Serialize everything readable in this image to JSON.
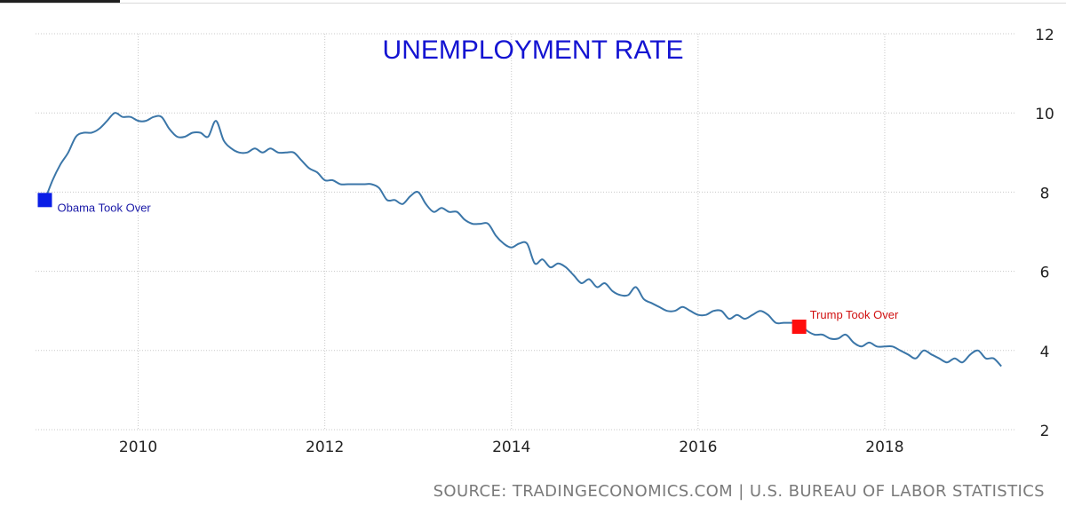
{
  "chart_data": {
    "type": "line",
    "title": "UNEMPLOYMENT RATE",
    "xlabel": "",
    "ylabel": "",
    "xlim": [
      2008.9,
      2019.4
    ],
    "ylim": [
      2,
      12
    ],
    "x_ticks": [
      "2010",
      "2012",
      "2014",
      "2016",
      "2018"
    ],
    "y_ticks": [
      "2",
      "4",
      "6",
      "8",
      "10",
      "12"
    ],
    "y_axis_position": "right",
    "grid": true,
    "series": [
      {
        "color": "#3b76a8",
        "x": [
          2009.0,
          2009.083,
          2009.167,
          2009.25,
          2009.333,
          2009.417,
          2009.5,
          2009.583,
          2009.667,
          2009.75,
          2009.833,
          2009.917,
          2010.0,
          2010.083,
          2010.167,
          2010.25,
          2010.333,
          2010.417,
          2010.5,
          2010.583,
          2010.667,
          2010.75,
          2010.833,
          2010.917,
          2011.0,
          2011.083,
          2011.167,
          2011.25,
          2011.333,
          2011.417,
          2011.5,
          2011.583,
          2011.667,
          2011.75,
          2011.833,
          2011.917,
          2012.0,
          2012.083,
          2012.167,
          2012.25,
          2012.333,
          2012.417,
          2012.5,
          2012.583,
          2012.667,
          2012.75,
          2012.833,
          2012.917,
          2013.0,
          2013.083,
          2013.167,
          2013.25,
          2013.333,
          2013.417,
          2013.5,
          2013.583,
          2013.667,
          2013.75,
          2013.833,
          2013.917,
          2014.0,
          2014.083,
          2014.167,
          2014.25,
          2014.333,
          2014.417,
          2014.5,
          2014.583,
          2014.667,
          2014.75,
          2014.833,
          2014.917,
          2015.0,
          2015.083,
          2015.167,
          2015.25,
          2015.333,
          2015.417,
          2015.5,
          2015.583,
          2015.667,
          2015.75,
          2015.833,
          2015.917,
          2016.0,
          2016.083,
          2016.167,
          2016.25,
          2016.333,
          2016.417,
          2016.5,
          2016.583,
          2016.667,
          2016.75,
          2016.833,
          2016.917,
          2017.0,
          2017.083,
          2017.167,
          2017.25,
          2017.333,
          2017.417,
          2017.5,
          2017.583,
          2017.667,
          2017.75,
          2017.833,
          2017.917,
          2018.0,
          2018.083,
          2018.167,
          2018.25,
          2018.333,
          2018.417,
          2018.5,
          2018.583,
          2018.667,
          2018.75,
          2018.833,
          2018.917,
          2019.0,
          2019.083,
          2019.167,
          2019.25
        ],
        "values": [
          7.8,
          8.3,
          8.7,
          9.0,
          9.4,
          9.5,
          9.5,
          9.6,
          9.8,
          10.0,
          9.9,
          9.9,
          9.8,
          9.8,
          9.9,
          9.9,
          9.6,
          9.4,
          9.4,
          9.5,
          9.5,
          9.4,
          9.8,
          9.3,
          9.1,
          9.0,
          9.0,
          9.1,
          9.0,
          9.1,
          9.0,
          9.0,
          9.0,
          8.8,
          8.6,
          8.5,
          8.3,
          8.3,
          8.2,
          8.2,
          8.2,
          8.2,
          8.2,
          8.1,
          7.8,
          7.8,
          7.7,
          7.9,
          8.0,
          7.7,
          7.5,
          7.6,
          7.5,
          7.5,
          7.3,
          7.2,
          7.2,
          7.2,
          6.9,
          6.7,
          6.6,
          6.7,
          6.7,
          6.2,
          6.3,
          6.1,
          6.2,
          6.1,
          5.9,
          5.7,
          5.8,
          5.6,
          5.7,
          5.5,
          5.4,
          5.4,
          5.6,
          5.3,
          5.2,
          5.1,
          5.0,
          5.0,
          5.1,
          5.0,
          4.9,
          4.9,
          5.0,
          5.0,
          4.8,
          4.9,
          4.8,
          4.9,
          5.0,
          4.9,
          4.7,
          4.7,
          4.7,
          4.7,
          4.5,
          4.4,
          4.4,
          4.3,
          4.3,
          4.4,
          4.2,
          4.1,
          4.2,
          4.1,
          4.1,
          4.1,
          4.0,
          3.9,
          3.8,
          4.0,
          3.9,
          3.8,
          3.7,
          3.8,
          3.7,
          3.9,
          4.0,
          3.8,
          3.8,
          3.6
        ]
      }
    ],
    "annotations": [
      {
        "label": "Obama Took Over",
        "x": 2009.0,
        "y": 7.8,
        "color": "#0a1ee6",
        "text_color": "#1a1aa8"
      },
      {
        "label": "Trump Took Over",
        "x": 2017.083,
        "y": 4.6,
        "color": "#ff0d0d",
        "text_color": "#d01010"
      }
    ]
  },
  "source_text": "SOURCE: TRADINGECONOMICS.COM | U.S. BUREAU OF LABOR STATISTICS"
}
